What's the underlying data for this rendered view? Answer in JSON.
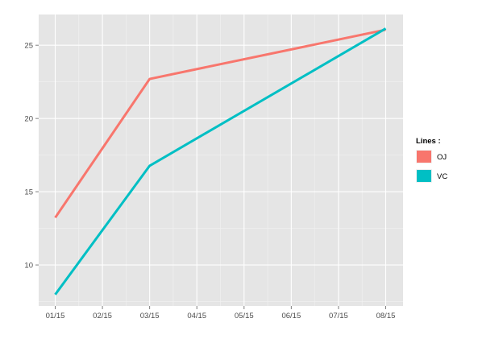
{
  "chart_data": {
    "type": "line",
    "title": "",
    "xlabel": "",
    "ylabel": "",
    "x": [
      "01/15",
      "03/15",
      "08/15"
    ],
    "x_ticks": [
      "01/15",
      "02/15",
      "03/15",
      "04/15",
      "05/15",
      "06/15",
      "07/15",
      "08/15"
    ],
    "y_ticks": [
      10,
      15,
      20,
      25
    ],
    "ylim": [
      7.2,
      27.1
    ],
    "grid": true,
    "legend_title": "Lines :",
    "legend_position": "right",
    "series": [
      {
        "name": "OJ",
        "color": "#F8766D",
        "values": [
          13.23,
          22.7,
          26.06
        ]
      },
      {
        "name": "VC",
        "color": "#00BFC4",
        "values": [
          7.98,
          16.77,
          26.14
        ]
      }
    ]
  }
}
